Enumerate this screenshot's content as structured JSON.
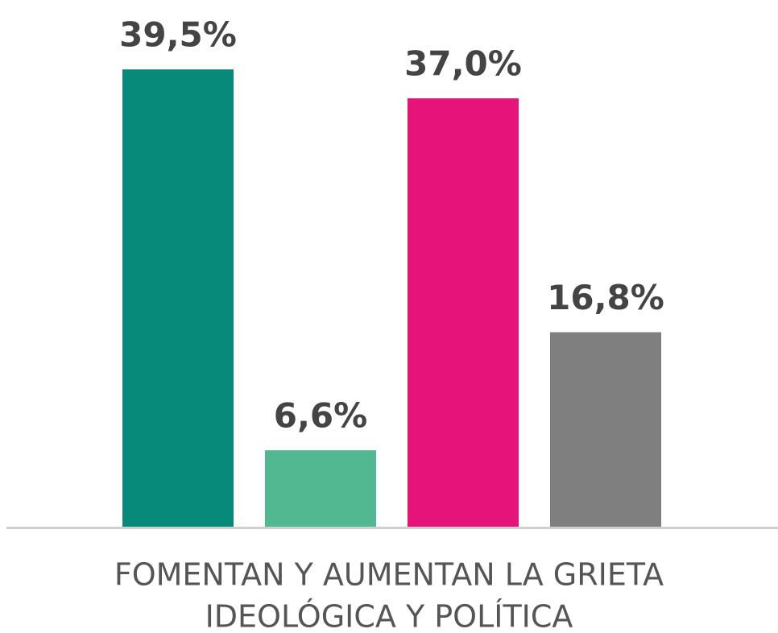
{
  "chart_data": {
    "type": "bar",
    "categories": [
      null,
      null,
      null,
      null
    ],
    "values": [
      39.5,
      6.6,
      37.0,
      16.8
    ],
    "value_labels": [
      "39,5%",
      "6,6%",
      "37,0%",
      "16,8%"
    ],
    "colors": [
      "#078a79",
      "#52b891",
      "#e5137a",
      "#7f7f7f"
    ],
    "ylim": [
      0,
      40
    ],
    "xlabel": [
      "FOMENTAN Y AUMENTAN LA GRIETA",
      "IDEOLÓGICA Y POLÍTICA"
    ]
  }
}
